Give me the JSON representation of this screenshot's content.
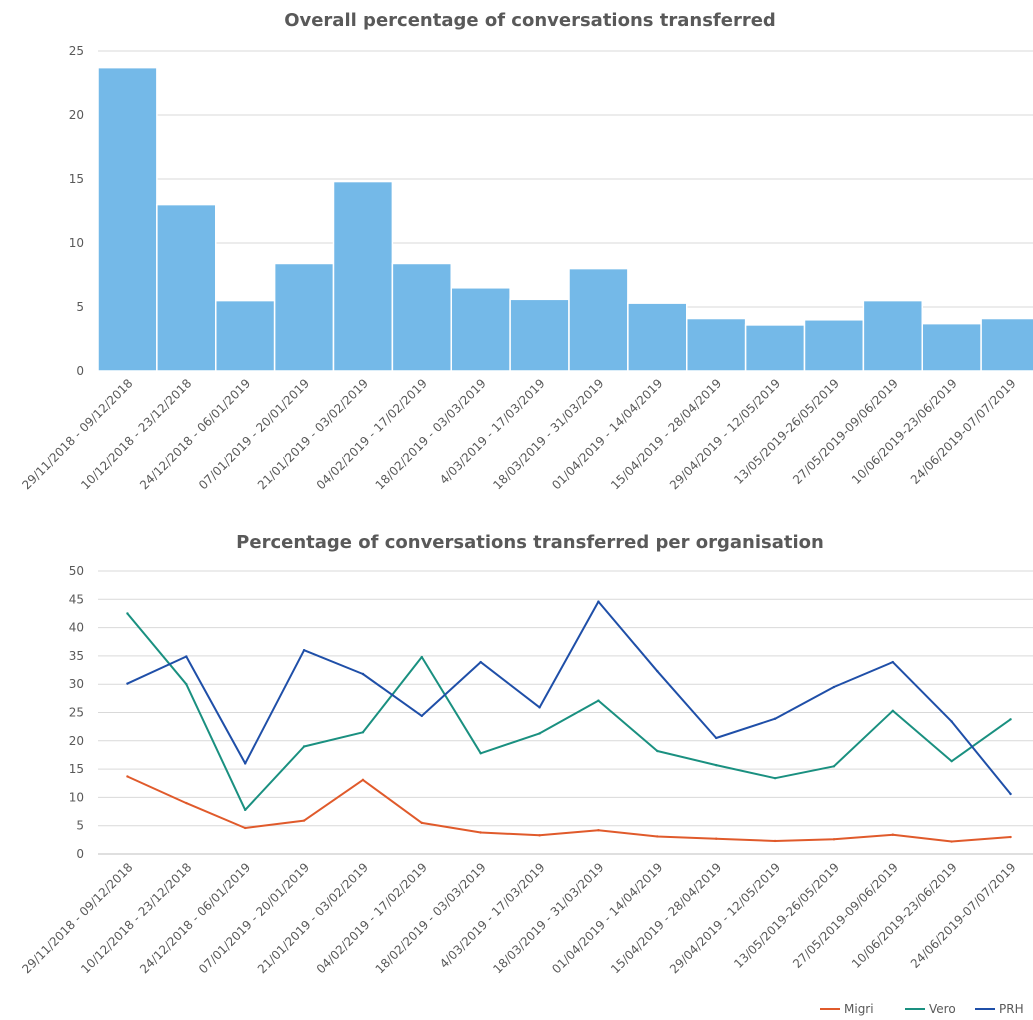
{
  "chart_data": [
    {
      "type": "bar",
      "title": "Overall percentage of conversations transferred",
      "categories": [
        "29/11/2018 - 09/12/2018",
        "10/12/2018 - 23/12/2018",
        "24/12/2018 - 06/01/2019",
        "07/01/2019 - 20/01/2019",
        "21/01/2019 - 03/02/2019",
        "04/02/2019 - 17/02/2019",
        "18/02/2019 - 03/03/2019",
        "4/03/2019 - 17/03/2019",
        "18/03/2019 - 31/03/2019",
        "01/04/2019 - 14/04/2019",
        "15/04/2019 - 28/04/2019",
        "29/04/2019 - 12/05/2019",
        "13/05/2019-26/05/2019",
        "27/05/2019-09/06/2019",
        "10/06/2019-23/06/2019",
        "24/06/2019-07/07/2019"
      ],
      "values": [
        23.7,
        13.0,
        5.5,
        8.4,
        14.8,
        8.4,
        6.5,
        5.6,
        8.0,
        5.3,
        4.1,
        3.6,
        4.0,
        5.5,
        3.7,
        4.1
      ],
      "yticks": [
        "0",
        "5",
        "10",
        "15",
        "20",
        "25"
      ],
      "ylim": [
        0,
        25
      ],
      "grid": true,
      "color": "#74b9e8"
    },
    {
      "type": "line",
      "title": "Percentage of conversations transferred per organisation",
      "categories": [
        "29/11/2018 - 09/12/2018",
        "10/12/2018 - 23/12/2018",
        "24/12/2018 - 06/01/2019",
        "07/01/2019 - 20/01/2019",
        "21/01/2019 - 03/02/2019",
        "04/02/2019 - 17/02/2019",
        "18/02/2019 - 03/03/2019",
        "4/03/2019 - 17/03/2019",
        "18/03/2019 - 31/03/2019",
        "01/04/2019 - 14/04/2019",
        "15/04/2019 - 28/04/2019",
        "29/04/2019 - 12/05/2019",
        "13/05/2019-26/05/2019",
        "27/05/2019-09/06/2019",
        "10/06/2019-23/06/2019",
        "24/06/2019-07/07/2019"
      ],
      "series": [
        {
          "name": "Migri",
          "color": "#e05a2b",
          "values": [
            13.7,
            9.0,
            4.6,
            5.9,
            13.1,
            5.5,
            3.8,
            3.3,
            4.2,
            3.1,
            2.7,
            2.3,
            2.6,
            3.4,
            2.2,
            3.0
          ]
        },
        {
          "name": "Vero",
          "color": "#1a9080",
          "values": [
            42.5,
            30.0,
            7.8,
            19.0,
            21.5,
            34.8,
            17.8,
            21.3,
            27.1,
            18.2,
            15.7,
            13.4,
            15.5,
            25.3,
            16.4,
            23.8
          ]
        },
        {
          "name": "PRH",
          "color": "#1f4fa8",
          "values": [
            30.1,
            34.9,
            16.0,
            36.0,
            31.8,
            24.4,
            33.9,
            25.9,
            44.6,
            32.3,
            20.5,
            23.9,
            29.5,
            33.9,
            23.4,
            10.6
          ]
        }
      ],
      "yticks": [
        "0",
        "5",
        "10",
        "15",
        "20",
        "25",
        "30",
        "35",
        "40",
        "45",
        "50"
      ],
      "ylim": [
        0,
        50
      ],
      "grid": true,
      "legend": "bottom-right"
    }
  ]
}
